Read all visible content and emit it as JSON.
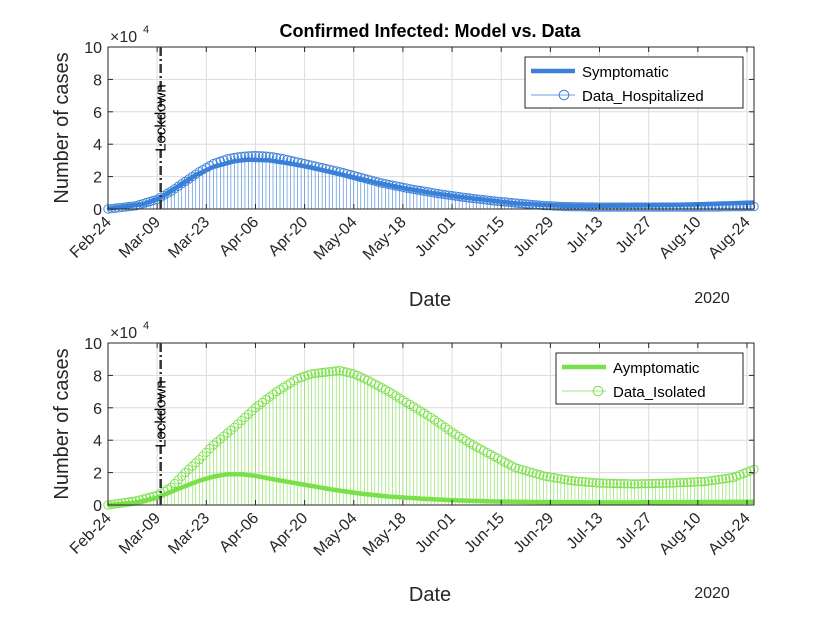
{
  "chart_data": [
    {
      "type": "line",
      "title": "Confirmed Infected: Model vs. Data",
      "xlabel": "Date",
      "ylabel": "Number of cases",
      "y_exponent_label": "×10",
      "y_exponent_power": "4",
      "year_label": "2020",
      "x_day_range": [
        0,
        184
      ],
      "ylim": [
        0,
        10
      ],
      "yticks": [
        0,
        2,
        4,
        6,
        8,
        10
      ],
      "grid": true,
      "x_ticks": [
        {
          "day": 0,
          "label": "Feb-24"
        },
        {
          "day": 14,
          "label": "Mar-09"
        },
        {
          "day": 28,
          "label": "Mar-23"
        },
        {
          "day": 42,
          "label": "Apr-06"
        },
        {
          "day": 56,
          "label": "Apr-20"
        },
        {
          "day": 70,
          "label": "May-04"
        },
        {
          "day": 84,
          "label": "May-18"
        },
        {
          "day": 98,
          "label": "Jun-01"
        },
        {
          "day": 112,
          "label": "Jun-15"
        },
        {
          "day": 126,
          "label": "Jun-29"
        },
        {
          "day": 140,
          "label": "Jul-13"
        },
        {
          "day": 154,
          "label": "Jul-27"
        },
        {
          "day": 168,
          "label": "Aug-10"
        },
        {
          "day": 182,
          "label": "Aug-24"
        }
      ],
      "lockdown": {
        "day": 15,
        "label": "Lockdown"
      },
      "legend_position": "top-right",
      "series": [
        {
          "name": "Symptomatic",
          "kind": "model",
          "color": "#3a7fd8",
          "points": [
            [
              0,
              0.02
            ],
            [
              10,
              0.3
            ],
            [
              15,
              0.7
            ],
            [
              20,
              1.4
            ],
            [
              25,
              2.1
            ],
            [
              30,
              2.6
            ],
            [
              36,
              2.95
            ],
            [
              40,
              3.05
            ],
            [
              46,
              3.0
            ],
            [
              52,
              2.8
            ],
            [
              58,
              2.55
            ],
            [
              64,
              2.25
            ],
            [
              70,
              1.95
            ],
            [
              76,
              1.65
            ],
            [
              84,
              1.3
            ],
            [
              92,
              1.0
            ],
            [
              100,
              0.75
            ],
            [
              108,
              0.55
            ],
            [
              116,
              0.35
            ],
            [
              124,
              0.25
            ],
            [
              130,
              0.2
            ],
            [
              140,
              0.2
            ],
            [
              150,
              0.22
            ],
            [
              160,
              0.25
            ],
            [
              170,
              0.3
            ],
            [
              184,
              0.4
            ]
          ]
        },
        {
          "name": "Data_Hospitalized",
          "kind": "data",
          "color": "#3a7fd8",
          "points": [
            [
              0,
              0
            ],
            [
              8,
              0.2
            ],
            [
              14,
              0.6
            ],
            [
              18,
              1.1
            ],
            [
              22,
              1.7
            ],
            [
              26,
              2.3
            ],
            [
              30,
              2.8
            ],
            [
              34,
              3.1
            ],
            [
              38,
              3.25
            ],
            [
              42,
              3.3
            ],
            [
              46,
              3.25
            ],
            [
              50,
              3.1
            ],
            [
              54,
              2.9
            ],
            [
              60,
              2.6
            ],
            [
              66,
              2.3
            ],
            [
              72,
              1.95
            ],
            [
              78,
              1.6
            ],
            [
              86,
              1.25
            ],
            [
              94,
              0.95
            ],
            [
              102,
              0.7
            ],
            [
              110,
              0.5
            ],
            [
              118,
              0.33
            ],
            [
              124,
              0.22
            ],
            [
              130,
              0.15
            ],
            [
              140,
              0.12
            ],
            [
              150,
              0.12
            ],
            [
              160,
              0.12
            ],
            [
              170,
              0.12
            ],
            [
              184,
              0.15
            ]
          ]
        }
      ]
    },
    {
      "type": "line",
      "title": "",
      "xlabel": "Date",
      "ylabel": "Number of cases",
      "y_exponent_label": "×10",
      "y_exponent_power": "4",
      "year_label": "2020",
      "x_day_range": [
        0,
        184
      ],
      "ylim": [
        0,
        10
      ],
      "yticks": [
        0,
        2,
        4,
        6,
        8,
        10
      ],
      "grid": true,
      "x_ticks": [
        {
          "day": 0,
          "label": "Feb-24"
        },
        {
          "day": 14,
          "label": "Mar-09"
        },
        {
          "day": 28,
          "label": "Mar-23"
        },
        {
          "day": 42,
          "label": "Apr-06"
        },
        {
          "day": 56,
          "label": "Apr-20"
        },
        {
          "day": 70,
          "label": "May-04"
        },
        {
          "day": 84,
          "label": "May-18"
        },
        {
          "day": 98,
          "label": "Jun-01"
        },
        {
          "day": 112,
          "label": "Jun-15"
        },
        {
          "day": 126,
          "label": "Jun-29"
        },
        {
          "day": 140,
          "label": "Jul-13"
        },
        {
          "day": 154,
          "label": "Jul-27"
        },
        {
          "day": 168,
          "label": "Aug-10"
        },
        {
          "day": 182,
          "label": "Aug-24"
        }
      ],
      "lockdown": {
        "day": 15,
        "label": "Lockdown"
      },
      "legend_position": "top-right",
      "series": [
        {
          "name": "Aymptomatic",
          "kind": "model",
          "color": "#7ae04a",
          "points": [
            [
              0,
              0
            ],
            [
              8,
              0.15
            ],
            [
              14,
              0.45
            ],
            [
              20,
              1.0
            ],
            [
              26,
              1.5
            ],
            [
              30,
              1.75
            ],
            [
              34,
              1.9
            ],
            [
              38,
              1.9
            ],
            [
              42,
              1.8
            ],
            [
              48,
              1.55
            ],
            [
              56,
              1.25
            ],
            [
              64,
              0.95
            ],
            [
              72,
              0.7
            ],
            [
              80,
              0.52
            ],
            [
              90,
              0.38
            ],
            [
              100,
              0.28
            ],
            [
              110,
              0.22
            ],
            [
              124,
              0.18
            ],
            [
              140,
              0.16
            ],
            [
              160,
              0.17
            ],
            [
              184,
              0.2
            ]
          ]
        },
        {
          "name": "Data_Isolated",
          "kind": "data",
          "color": "#7ae04a",
          "points": [
            [
              0,
              0
            ],
            [
              8,
              0.25
            ],
            [
              14,
              0.6
            ],
            [
              18,
              1.1
            ],
            [
              22,
              2.0
            ],
            [
              26,
              2.8
            ],
            [
              30,
              3.7
            ],
            [
              36,
              4.8
            ],
            [
              42,
              6.0
            ],
            [
              48,
              7.0
            ],
            [
              54,
              7.8
            ],
            [
              58,
              8.1
            ],
            [
              62,
              8.2
            ],
            [
              66,
              8.3
            ],
            [
              70,
              8.1
            ],
            [
              74,
              7.7
            ],
            [
              80,
              7.0
            ],
            [
              86,
              6.2
            ],
            [
              92,
              5.4
            ],
            [
              98,
              4.5
            ],
            [
              104,
              3.7
            ],
            [
              110,
              3.0
            ],
            [
              116,
              2.3
            ],
            [
              124,
              1.8
            ],
            [
              132,
              1.5
            ],
            [
              140,
              1.35
            ],
            [
              150,
              1.3
            ],
            [
              160,
              1.35
            ],
            [
              170,
              1.45
            ],
            [
              178,
              1.7
            ],
            [
              184,
              2.2
            ]
          ]
        }
      ]
    }
  ]
}
